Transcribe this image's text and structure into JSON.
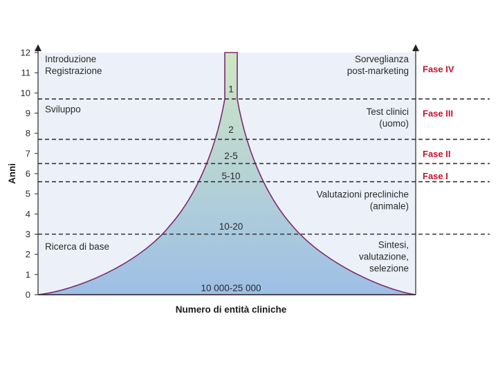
{
  "chart_data": {
    "type": "area",
    "title": "",
    "xlabel": "Numero di entità cliniche",
    "ylabel": "Anni",
    "ylim": [
      0,
      12
    ],
    "y_ticks": [
      "0",
      "1",
      "2",
      "3",
      "4",
      "5",
      "6",
      "7",
      "8",
      "9",
      "10",
      "11",
      "12"
    ],
    "dashed_levels": [
      3,
      5.6,
      6.5,
      7.7,
      9.7
    ],
    "stage_labels_left": [
      {
        "text": "Introduzione\nRegistrazione",
        "year": 11.4
      },
      {
        "text": "Sviluppo",
        "year": 9.2
      },
      {
        "text": "Ricerca di base",
        "year": 2.4
      }
    ],
    "stage_labels_right": [
      {
        "text": "Sorveglianza\npost-marketing",
        "year": 11.4
      },
      {
        "text": "Test clinici\n(uomo)",
        "year": 8.8
      },
      {
        "text": "Valutazioni precliniche\n(animale)",
        "year": 4.7
      },
      {
        "text": "Sintesi,\nvalutazione,\nselezione",
        "year": 1.9
      }
    ],
    "phases": [
      {
        "label": "Fase IV",
        "year": 11.2
      },
      {
        "label": "Fase III",
        "year": 9.0
      },
      {
        "label": "Fase II",
        "year": 7.0
      },
      {
        "label": "Fase I",
        "year": 5.9
      }
    ],
    "funnel_counts": [
      {
        "label": "1",
        "year": 10.2
      },
      {
        "label": "2",
        "year": 8.2
      },
      {
        "label": "2-5",
        "year": 6.9
      },
      {
        "label": "5-10",
        "year": 5.9
      },
      {
        "label": "10-20",
        "year": 3.4
      },
      {
        "label": "10 000-25 000",
        "year": 0.35
      }
    ],
    "colors": {
      "plot_background": "#ecf0f9",
      "funnel_top": "#cfe6c4",
      "funnel_bottom": "#9dbfe6",
      "funnel_outline": "#7b2a6e",
      "phase_text": "#c8102e"
    }
  }
}
